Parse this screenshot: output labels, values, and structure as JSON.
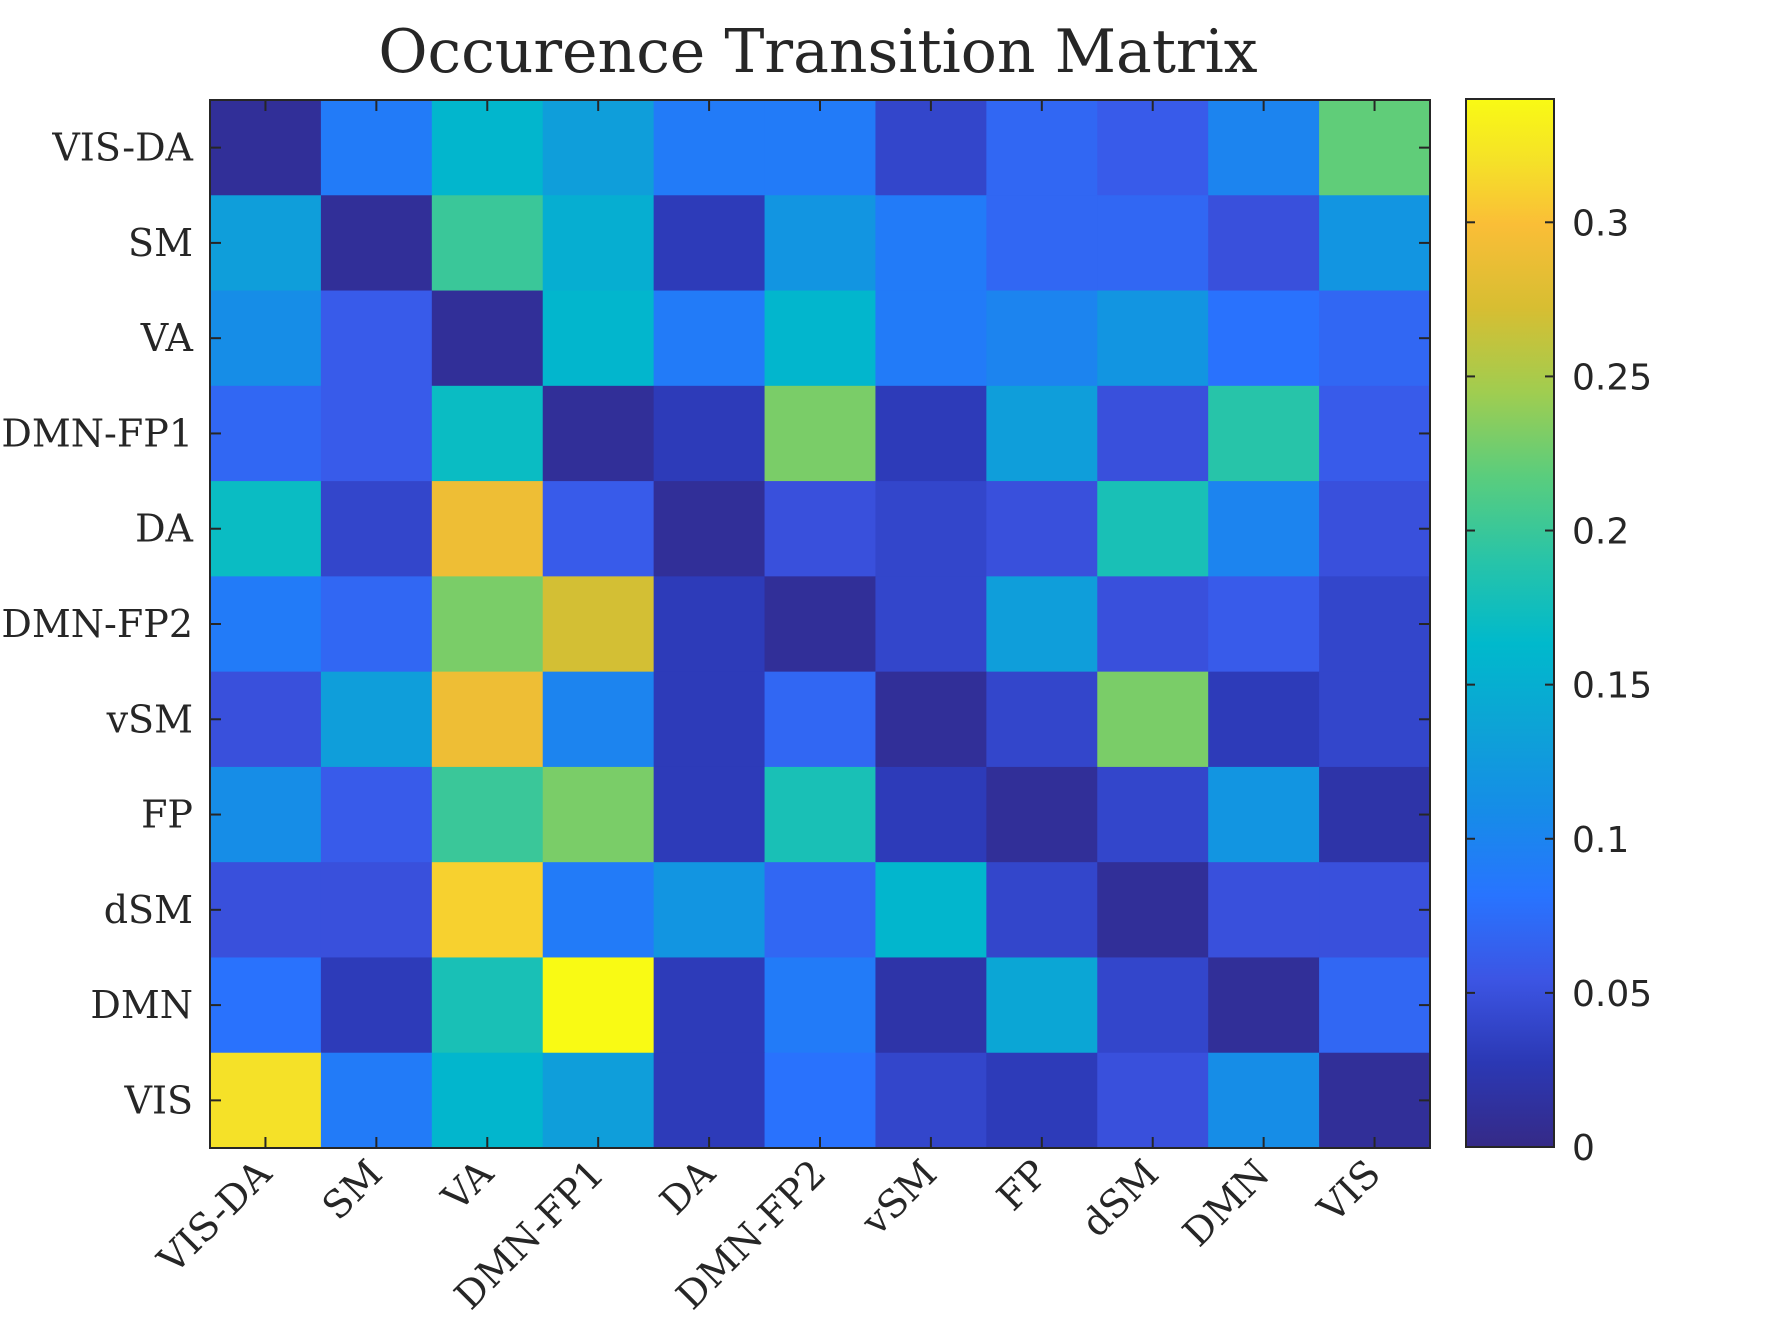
{
  "chart_data": {
    "type": "heatmap",
    "title": "Occurence Transition Matrix",
    "row_labels": [
      "VIS-DA",
      "SM",
      "VA",
      "DMN-FP1",
      "DA",
      "DMN-FP2",
      "vSM",
      "FP",
      "dSM",
      "DMN",
      "VIS"
    ],
    "col_labels": [
      "VIS-DA",
      "SM",
      "VA",
      "DMN-FP1",
      "DA",
      "DMN-FP2",
      "vSM",
      "FP",
      "dSM",
      "DMN",
      "VIS"
    ],
    "values": [
      [
        0.01,
        0.09,
        0.16,
        0.13,
        0.09,
        0.09,
        0.04,
        0.07,
        0.06,
        0.1,
        0.22
      ],
      [
        0.13,
        0.01,
        0.2,
        0.15,
        0.03,
        0.12,
        0.09,
        0.07,
        0.07,
        0.05,
        0.12
      ],
      [
        0.11,
        0.06,
        0.01,
        0.16,
        0.09,
        0.16,
        0.09,
        0.1,
        0.12,
        0.08,
        0.07
      ],
      [
        0.07,
        0.06,
        0.17,
        0.01,
        0.03,
        0.23,
        0.03,
        0.13,
        0.05,
        0.19,
        0.06
      ],
      [
        0.17,
        0.04,
        0.29,
        0.06,
        0.01,
        0.05,
        0.04,
        0.05,
        0.18,
        0.1,
        0.05
      ],
      [
        0.09,
        0.07,
        0.23,
        0.27,
        0.03,
        0.01,
        0.04,
        0.13,
        0.05,
        0.06,
        0.04
      ],
      [
        0.05,
        0.13,
        0.29,
        0.1,
        0.03,
        0.07,
        0.01,
        0.04,
        0.23,
        0.03,
        0.04
      ],
      [
        0.11,
        0.06,
        0.2,
        0.23,
        0.03,
        0.18,
        0.03,
        0.01,
        0.04,
        0.12,
        0.02
      ],
      [
        0.05,
        0.05,
        0.31,
        0.09,
        0.12,
        0.07,
        0.16,
        0.04,
        0.01,
        0.05,
        0.05
      ],
      [
        0.08,
        0.03,
        0.18,
        0.34,
        0.03,
        0.09,
        0.02,
        0.14,
        0.04,
        0.01,
        0.07
      ],
      [
        0.32,
        0.09,
        0.16,
        0.13,
        0.03,
        0.08,
        0.04,
        0.03,
        0.05,
        0.11,
        0.01
      ]
    ],
    "colorbar": {
      "ticks": [
        0,
        0.05,
        0.1,
        0.15,
        0.2,
        0.25,
        0.3
      ],
      "tick_labels": [
        "0",
        "0.05",
        "0.1",
        "0.15",
        "0.2",
        "0.25",
        "0.3"
      ],
      "range": [
        0,
        0.34
      ],
      "colormap": "parula"
    },
    "grid": false
  }
}
